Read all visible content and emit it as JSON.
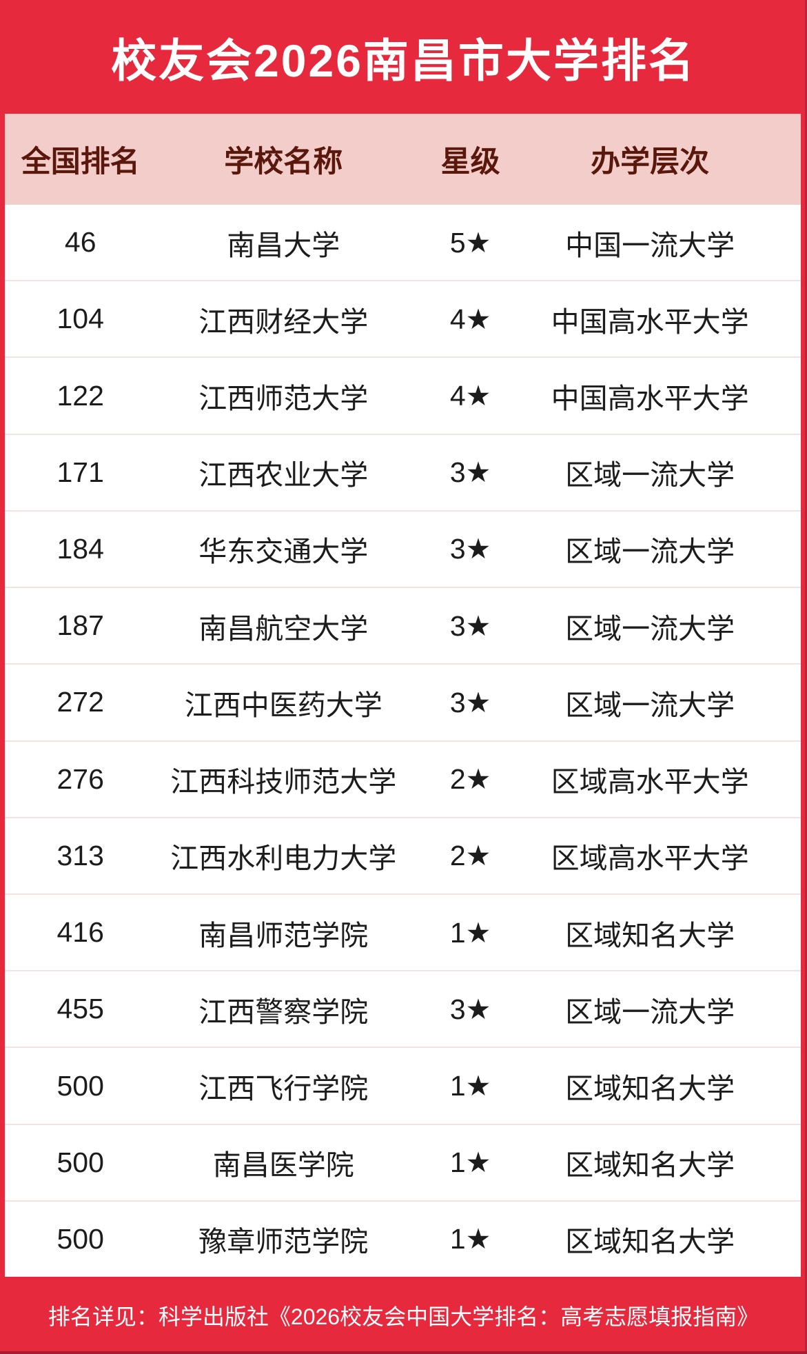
{
  "header": {
    "title": "校友会2026南昌市大学排名"
  },
  "table": {
    "headers": [
      "全国排名",
      "学校名称",
      "星级",
      "办学层次"
    ],
    "rows": [
      {
        "rank": "46",
        "school": "南昌大学",
        "stars": "5★",
        "level": "中国一流大学"
      },
      {
        "rank": "104",
        "school": "江西财经大学",
        "stars": "4★",
        "level": "中国高水平大学"
      },
      {
        "rank": "122",
        "school": "江西师范大学",
        "stars": "4★",
        "level": "中国高水平大学"
      },
      {
        "rank": "171",
        "school": "江西农业大学",
        "stars": "3★",
        "level": "区域一流大学"
      },
      {
        "rank": "184",
        "school": "华东交通大学",
        "stars": "3★",
        "level": "区域一流大学"
      },
      {
        "rank": "187",
        "school": "南昌航空大学",
        "stars": "3★",
        "level": "区域一流大学"
      },
      {
        "rank": "272",
        "school": "江西中医药大学",
        "stars": "3★",
        "level": "区域一流大学"
      },
      {
        "rank": "276",
        "school": "江西科技师范大学",
        "stars": "2★",
        "level": "区域高水平大学"
      },
      {
        "rank": "313",
        "school": "江西水利电力大学",
        "stars": "2★",
        "level": "区域高水平大学"
      },
      {
        "rank": "416",
        "school": "南昌师范学院",
        "stars": "1★",
        "level": "区域知名大学"
      },
      {
        "rank": "455",
        "school": "江西警察学院",
        "stars": "3★",
        "level": "区域一流大学"
      },
      {
        "rank": "500",
        "school": "江西飞行学院",
        "stars": "1★",
        "level": "区域知名大学"
      },
      {
        "rank": "500",
        "school": "南昌医学院",
        "stars": "1★",
        "level": "区域知名大学"
      },
      {
        "rank": "500",
        "school": "豫章师范学院",
        "stars": "1★",
        "level": "区域知名大学"
      }
    ]
  },
  "footer": {
    "note": "排名详见：科学出版社《2026校友会中国大学排名：高考志愿填报指南》"
  },
  "colors": {
    "background_red": "#E7293E",
    "header_pink": "#F2CDC9",
    "header_text": "#5A170C",
    "body_text": "#1C1C1C",
    "divider": "#F3E2E1",
    "title_text": "#FFFFFF",
    "footer_text": "#FFFFFF"
  },
  "chart_data": {
    "type": "table",
    "title": "校友会2026南昌市大学排名",
    "columns": [
      "全国排名",
      "学校名称",
      "星级",
      "办学层次"
    ],
    "rows": [
      [
        "46",
        "南昌大学",
        "5★",
        "中国一流大学"
      ],
      [
        "104",
        "江西财经大学",
        "4★",
        "中国高水平大学"
      ],
      [
        "122",
        "江西师范大学",
        "4★",
        "中国高水平大学"
      ],
      [
        "171",
        "江西农业大学",
        "3★",
        "区域一流大学"
      ],
      [
        "184",
        "华东交通大学",
        "3★",
        "区域一流大学"
      ],
      [
        "187",
        "南昌航空大学",
        "3★",
        "区域一流大学"
      ],
      [
        "272",
        "江西中医药大学",
        "3★",
        "区域一流大学"
      ],
      [
        "276",
        "江西科技师范大学",
        "2★",
        "区域高水平大学"
      ],
      [
        "313",
        "江西水利电力大学",
        "2★",
        "区域高水平大学"
      ],
      [
        "416",
        "南昌师范学院",
        "1★",
        "区域知名大学"
      ],
      [
        "455",
        "江西警察学院",
        "3★",
        "区域一流大学"
      ],
      [
        "500",
        "江西飞行学院",
        "1★",
        "区域知名大学"
      ],
      [
        "500",
        "南昌医学院",
        "1★",
        "区域知名大学"
      ],
      [
        "500",
        "豫章师范学院",
        "1★",
        "区域知名大学"
      ]
    ],
    "footnote": "排名详见：科学出版社《2026校友会中国大学排名：高考志愿填报指南》"
  }
}
